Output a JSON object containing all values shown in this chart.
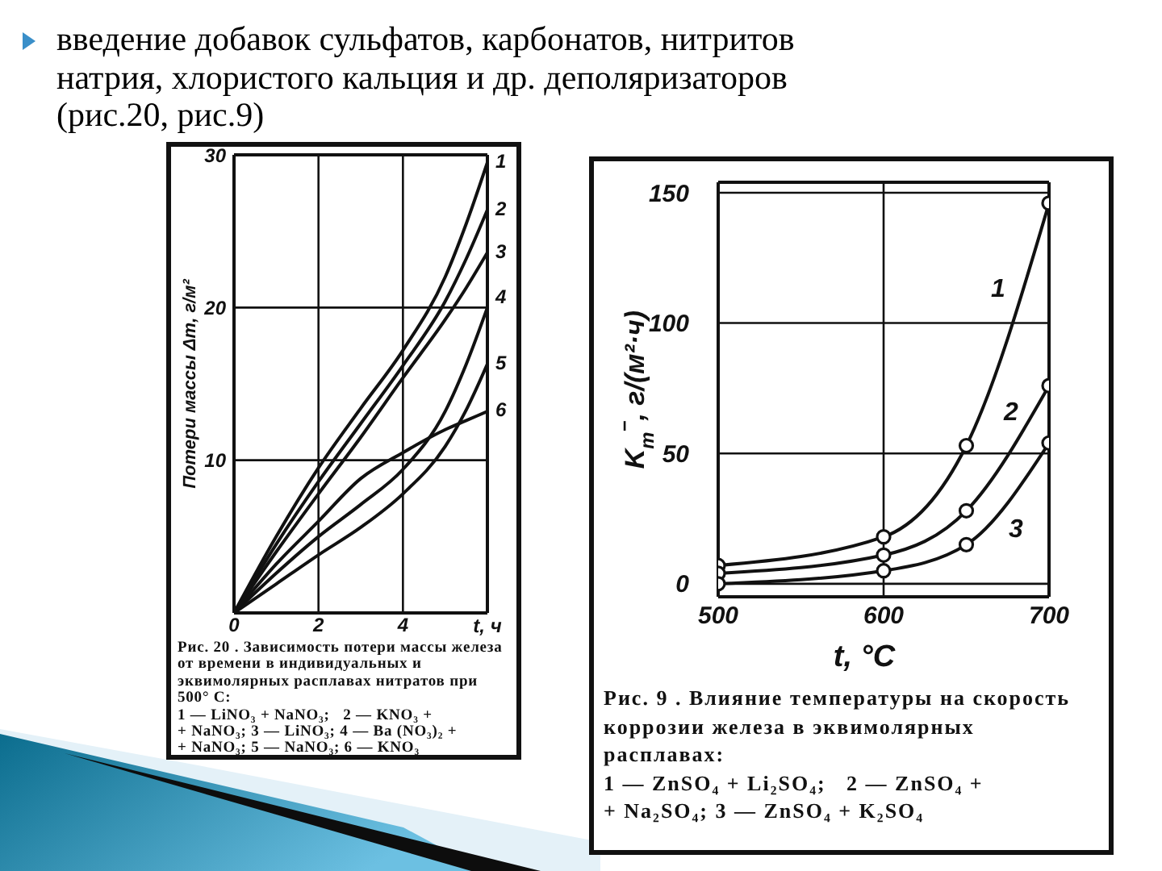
{
  "chart_data": [
    {
      "type": "line",
      "title": "введение добавок сульфатов, карбонатов, нитритов натрия, хлористого кальция и др. деполяризаторов (рис.20, рис.9)",
      "xlabel": "t, ч",
      "ylabel": "Потери массы Δm, г/м²",
      "x": [
        0,
        1,
        2,
        3,
        4,
        5,
        5.5,
        6
      ],
      "series": [
        {
          "name": "1",
          "color": "#111111",
          "values": [
            0,
            5.0,
            9.5,
            13.4,
            17.2,
            22.0,
            25.5,
            29.5
          ]
        },
        {
          "name": "2",
          "color": "#111111",
          "values": [
            0,
            4.5,
            8.6,
            12.4,
            16.2,
            20.4,
            23.2,
            26.4
          ]
        },
        {
          "name": "3",
          "color": "#111111",
          "values": [
            0,
            4.0,
            7.8,
            11.5,
            15.4,
            19.2,
            21.3,
            23.6
          ]
        },
        {
          "name": "4",
          "color": "#111111",
          "values": [
            0,
            2.6,
            5.0,
            7.1,
            9.4,
            13.2,
            16.3,
            20.0
          ]
        },
        {
          "name": "5",
          "color": "#111111",
          "values": [
            0,
            1.9,
            3.8,
            5.6,
            7.8,
            10.9,
            13.3,
            16.3
          ]
        },
        {
          "name": "6",
          "color": "#111111",
          "values": [
            0,
            3.2,
            6.0,
            8.8,
            10.5,
            12.0,
            12.6,
            13.2
          ]
        }
      ],
      "xlim": [
        0,
        6
      ],
      "ylim": [
        0,
        30
      ],
      "xticks": [
        0,
        2,
        4
      ],
      "yticks": [
        10,
        20,
        30
      ],
      "grid": true,
      "marker": "none",
      "annotations": [
        "Рис. 20 . Зависимость потери массы железа от времени в индивидуальных и эквимолярных расплавах нитратов при 500° C:",
        "1 — LiNO₃ + NaNO₃;   2 — KNO₃ +",
        "+ NaNO₃; 3 — LiNO₃; 4 — Ba (NO₃)₂ +",
        "+ NaNO₃; 5 — NaNO₃; 6 — KNO₃"
      ]
    },
    {
      "type": "line",
      "xlabel": "t, °C",
      "ylabel": "K$_{m}$$^{−}$, г/(м²·ч)",
      "x": [
        500,
        600,
        650,
        700
      ],
      "series": [
        {
          "name": "1",
          "color": "#111111",
          "values": [
            7,
            18,
            53,
            146
          ]
        },
        {
          "name": "2",
          "color": "#111111",
          "values": [
            4,
            11,
            28,
            76
          ]
        },
        {
          "name": "3",
          "color": "#111111",
          "values": [
            0,
            5,
            15,
            54
          ]
        }
      ],
      "xlim": [
        500,
        700
      ],
      "ylim": [
        -5,
        154
      ],
      "xticks": [
        500,
        600,
        700
      ],
      "yticks": [
        0,
        50,
        100,
        150
      ],
      "grid": true,
      "marker": "circle",
      "annotations": [
        "Рис. 9 . Влияние температуры на скорость коррозии железа в эквимолярных расплавах:",
        "1 — ZnSO₄ + Li₂SO₄;   2 — ZnSO₄ +",
        "+ Na₂SO₄; 3 — ZnSO₄ + K₂SO₄"
      ]
    }
  ]
}
